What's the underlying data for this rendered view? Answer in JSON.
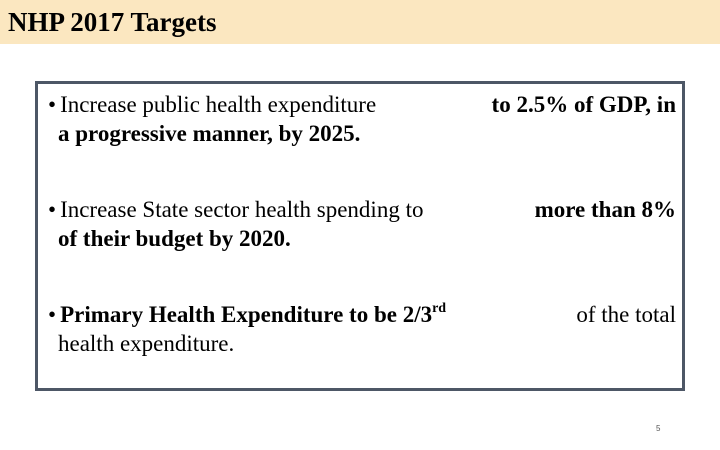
{
  "title": "NHP 2017 Targets",
  "bullet_char": "•",
  "bullets": [
    {
      "l1_plain": "Increase public health expenditure",
      "l1_bold": "to 2.5% of GDP, in",
      "l2_bold": "a progressive manner, by 2025."
    },
    {
      "l1_plain": "Increase State sector health spending to",
      "l1_bold": "more than 8%",
      "l2_bold": "of their budget by 2020."
    },
    {
      "l1_bold_a": "Primary Health Expenditure to be 2/3",
      "l1_sup": "rd",
      "l1_plain": "of the total",
      "l2_plain": "health expenditure."
    }
  ],
  "page_number": "5"
}
